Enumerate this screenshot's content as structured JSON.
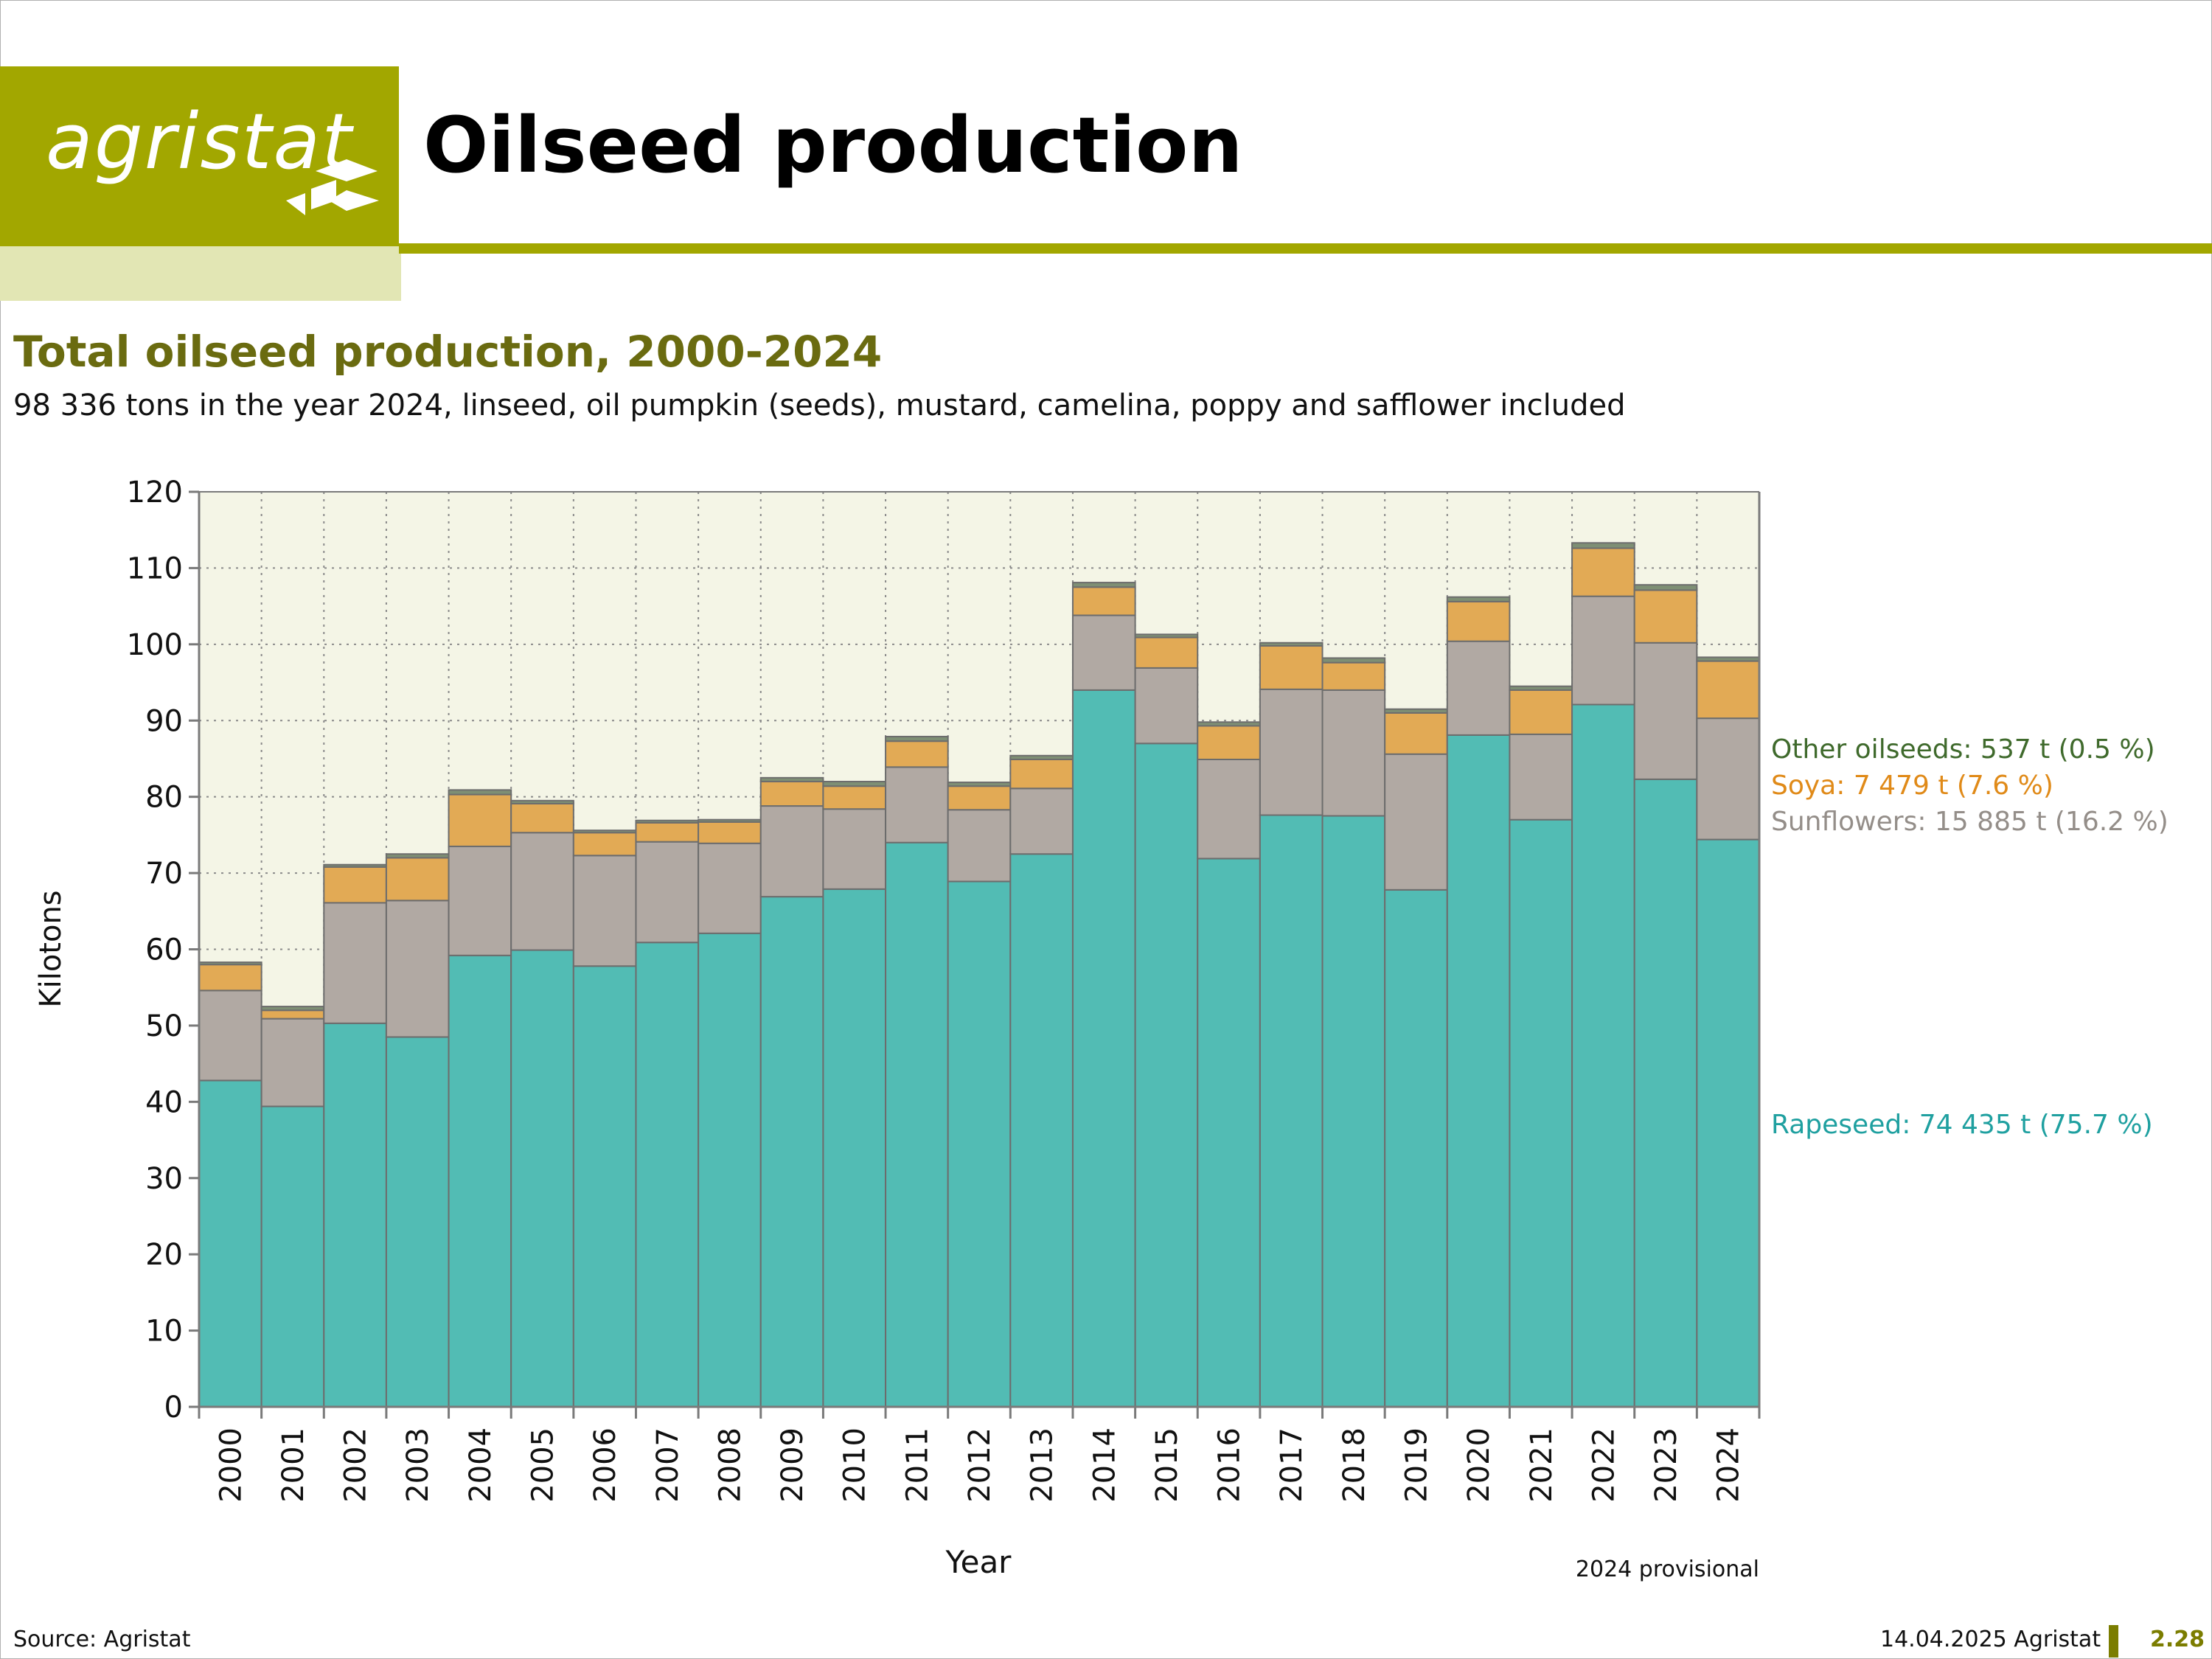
{
  "header": {
    "logo_text": "agristat",
    "page_title": "Oilseed production"
  },
  "footer": {
    "source": "Source: Agristat",
    "date": "14.04.2025 Agristat",
    "page_number": "2.28"
  },
  "colors": {
    "brand_olive": "#a2a700",
    "brand_light": "#e2e6b4",
    "title_olive": "#6a6b10",
    "plot_background": "#f4f5e6",
    "rapeseed": "#52bcb4",
    "sunflowers": "#b1a9a3",
    "soya": "#e2aa55",
    "other": "#7e8f74",
    "other_label": "#3f6a2c",
    "soya_label": "#e08a18",
    "sunflowers_label": "#948e89",
    "rapeseed_label": "#1fa0a0"
  },
  "chart_data": {
    "type": "bar",
    "stacked": true,
    "title": "Total oilseed production, 2000-2024",
    "subtitle": "98 336 tons in the year 2024, linseed, oil pumpkin (seeds), mustard, camelina, poppy and safflower included",
    "xlabel": "Year",
    "ylabel": "Kilotons",
    "ylim": [
      0,
      120
    ],
    "yticks": [
      0,
      10,
      20,
      30,
      40,
      50,
      60,
      70,
      80,
      90,
      100,
      110,
      120
    ],
    "grid": true,
    "note": "2024 provisional",
    "categories": [
      "2000",
      "2001",
      "2002",
      "2003",
      "2004",
      "2005",
      "2006",
      "2007",
      "2008",
      "2009",
      "2010",
      "2011",
      "2012",
      "2013",
      "2014",
      "2015",
      "2016",
      "2017",
      "2018",
      "2019",
      "2020",
      "2021",
      "2022",
      "2023",
      "2024"
    ],
    "series": [
      {
        "key": "rapeseed",
        "values": [
          42.8,
          39.4,
          50.3,
          48.5,
          59.2,
          59.9,
          57.8,
          60.9,
          62.1,
          66.9,
          67.9,
          74.0,
          68.9,
          72.5,
          94.0,
          87.0,
          71.9,
          77.6,
          77.5,
          67.8,
          88.1,
          77.0,
          92.1,
          82.3,
          74.4
        ]
      },
      {
        "key": "sunflowers",
        "values": [
          11.8,
          11.5,
          15.8,
          17.9,
          14.3,
          15.4,
          14.5,
          13.2,
          11.8,
          11.9,
          10.5,
          9.9,
          9.4,
          8.6,
          9.8,
          9.9,
          13.0,
          16.5,
          16.5,
          17.8,
          12.3,
          11.2,
          14.2,
          17.9,
          15.9
        ]
      },
      {
        "key": "soya",
        "values": [
          3.4,
          1.1,
          4.7,
          5.6,
          6.8,
          3.8,
          3.0,
          2.5,
          2.8,
          3.2,
          3.0,
          3.4,
          3.1,
          3.8,
          3.7,
          4.0,
          4.4,
          5.7,
          3.6,
          5.4,
          5.2,
          5.8,
          6.3,
          6.9,
          7.5
        ]
      },
      {
        "key": "other",
        "values": [
          0.3,
          0.5,
          0.3,
          0.5,
          0.6,
          0.4,
          0.3,
          0.3,
          0.3,
          0.5,
          0.6,
          0.6,
          0.5,
          0.5,
          0.6,
          0.4,
          0.5,
          0.4,
          0.6,
          0.5,
          0.6,
          0.5,
          0.7,
          0.7,
          0.5
        ]
      }
    ],
    "end_labels": {
      "other": "Other oilseeds: 537 t (0.5 %)",
      "soya": "Soya: 7 479 t (7.6 %)",
      "sunflowers": "Sunflowers: 15 885 t (16.2 %)",
      "rapeseed": "Rapeseed: 74 435 t (75.7 %)"
    }
  }
}
